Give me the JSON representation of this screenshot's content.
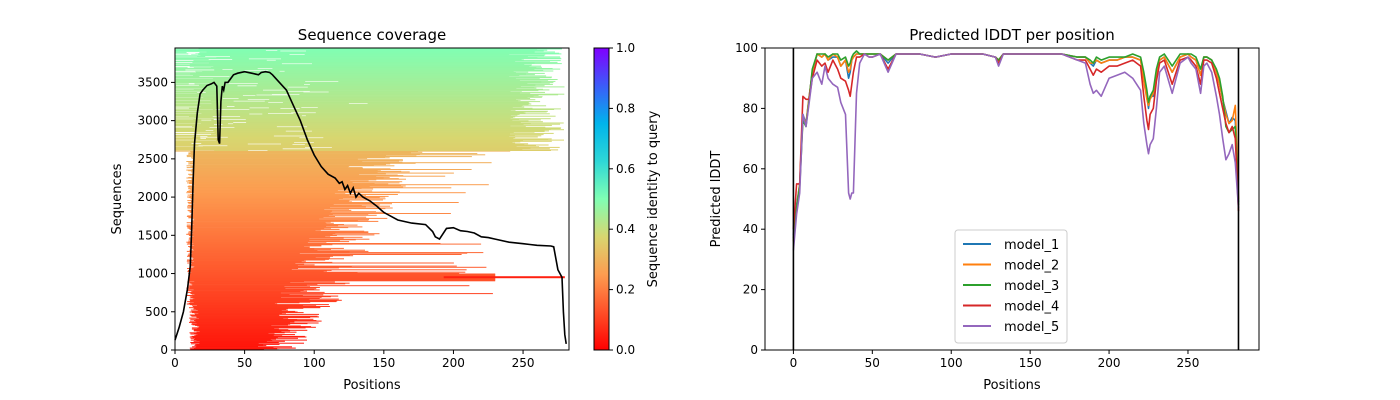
{
  "figure": {
    "background": "#ffffff"
  },
  "chart_data": [
    {
      "type": "heatmap",
      "title": "Sequence coverage",
      "xlabel": "Positions",
      "ylabel": "Sequences",
      "xlim": [
        0,
        283
      ],
      "ylim": [
        0,
        3950
      ],
      "xticks": [
        0,
        50,
        100,
        150,
        200,
        250
      ],
      "yticks": [
        0,
        500,
        1000,
        1500,
        2000,
        2500,
        3000,
        3500
      ],
      "colorbar": {
        "label": "Sequence identity to query",
        "range": [
          0.0,
          1.0
        ],
        "ticks": [
          "0.0",
          "0.2",
          "0.4",
          "0.6",
          "0.8",
          "1.0"
        ],
        "colormap": "rainbow_r"
      },
      "coverage_line": {
        "color": "#000000",
        "x": [
          0,
          3,
          6,
          9,
          11,
          12,
          13,
          14,
          16,
          18,
          20,
          23,
          26,
          28,
          30,
          31,
          32,
          33,
          34,
          35,
          36,
          38,
          40,
          42,
          45,
          50,
          55,
          60,
          62,
          65,
          68,
          70,
          72,
          75,
          80,
          85,
          90,
          95,
          100,
          105,
          110,
          115,
          118,
          120,
          122,
          124,
          126,
          128,
          130,
          132,
          135,
          140,
          145,
          150,
          160,
          170,
          180,
          185,
          187,
          190,
          195,
          200,
          205,
          210,
          215,
          220,
          225,
          230,
          240,
          250,
          255,
          260,
          270,
          272,
          275,
          278,
          279,
          280,
          281
        ],
        "y": [
          130,
          300,
          500,
          800,
          1100,
          1600,
          2200,
          2700,
          3100,
          3350,
          3400,
          3460,
          3480,
          3500,
          3450,
          2750,
          2700,
          3250,
          3450,
          3400,
          3500,
          3500,
          3550,
          3600,
          3620,
          3640,
          3620,
          3600,
          3630,
          3640,
          3630,
          3600,
          3560,
          3500,
          3400,
          3200,
          3000,
          2750,
          2550,
          2400,
          2300,
          2250,
          2180,
          2200,
          2100,
          2150,
          2050,
          2120,
          2000,
          2050,
          2000,
          1950,
          1880,
          1800,
          1700,
          1660,
          1640,
          1550,
          1480,
          1450,
          1590,
          1600,
          1560,
          1550,
          1530,
          1480,
          1470,
          1450,
          1410,
          1390,
          1380,
          1370,
          1360,
          1350,
          1050,
          950,
          500,
          200,
          80
        ]
      }
    },
    {
      "type": "line",
      "title": "Predicted lDDT per position",
      "xlabel": "Positions",
      "ylabel": "Predicted lDDT",
      "xlim": [
        -18,
        295
      ],
      "ylim": [
        0,
        100
      ],
      "xticks": [
        0,
        50,
        100,
        150,
        200,
        250
      ],
      "yticks": [
        0,
        20,
        40,
        60,
        80,
        100
      ],
      "vlines": [
        0,
        282
      ],
      "legend_position": "lower center",
      "x": [
        0,
        2,
        4,
        6,
        8,
        10,
        12,
        15,
        18,
        20,
        22,
        25,
        28,
        30,
        33,
        35,
        36,
        37,
        38,
        40,
        42,
        45,
        48,
        50,
        55,
        60,
        65,
        70,
        75,
        80,
        90,
        100,
        110,
        120,
        128,
        130,
        133,
        140,
        150,
        160,
        170,
        180,
        185,
        188,
        190,
        192,
        195,
        200,
        205,
        210,
        215,
        220,
        222,
        224,
        225,
        226,
        228,
        230,
        232,
        235,
        240,
        245,
        250,
        252,
        255,
        258,
        260,
        262,
        265,
        268,
        270,
        272,
        274,
        276,
        278,
        280,
        282
      ],
      "series": [
        {
          "name": "model_1",
          "color": "#1f77b4",
          "values": [
            38,
            48,
            55,
            78,
            75,
            84,
            92,
            98,
            97,
            98,
            96,
            97,
            97,
            94,
            96,
            90,
            92,
            96,
            97,
            98,
            98,
            98,
            98,
            98,
            98,
            95,
            98,
            98,
            98,
            98,
            97,
            98,
            98,
            98,
            97,
            96,
            98,
            98,
            98,
            98,
            98,
            97,
            97,
            95,
            94,
            96,
            95,
            96,
            96,
            97,
            97,
            96,
            90,
            84,
            80,
            84,
            84,
            92,
            96,
            97,
            92,
            97,
            98,
            97,
            96,
            91,
            97,
            97,
            96,
            92,
            88,
            83,
            79,
            75,
            77,
            76,
            49
          ]
        },
        {
          "name": "model_2",
          "color": "#ff7f0e",
          "values": [
            36,
            47,
            55,
            77,
            75,
            84,
            92,
            98,
            97,
            98,
            96,
            98,
            97,
            94,
            96,
            92,
            93,
            96,
            97,
            98,
            98,
            98,
            98,
            98,
            98,
            96,
            98,
            98,
            98,
            98,
            97,
            98,
            98,
            98,
            97,
            96,
            98,
            98,
            98,
            98,
            98,
            97,
            97,
            95,
            95,
            96,
            95,
            96,
            96,
            97,
            97,
            96,
            89,
            83,
            81,
            83,
            85,
            91,
            96,
            97,
            92,
            97,
            98,
            97,
            96,
            91,
            97,
            97,
            96,
            92,
            88,
            83,
            78,
            75,
            76,
            81,
            50
          ]
        },
        {
          "name": "model_3",
          "color": "#2ca02c",
          "values": [
            37,
            47,
            54,
            76,
            74,
            83,
            93,
            98,
            98,
            98,
            97,
            98,
            98,
            96,
            97,
            94,
            95,
            97,
            98,
            99,
            98,
            98,
            98,
            98,
            98,
            96,
            98,
            98,
            98,
            98,
            97,
            98,
            98,
            98,
            97,
            96,
            98,
            98,
            98,
            98,
            98,
            97,
            97,
            96,
            95,
            97,
            96,
            97,
            97,
            97,
            98,
            97,
            92,
            86,
            82,
            84,
            86,
            93,
            97,
            98,
            94,
            98,
            98,
            98,
            97,
            93,
            97,
            97,
            96,
            93,
            90,
            84,
            74,
            72,
            73,
            74,
            48
          ]
        },
        {
          "name": "model_4",
          "color": "#d62728",
          "values": [
            40,
            55,
            55,
            84,
            83,
            83,
            90,
            96,
            94,
            95,
            92,
            96,
            93,
            90,
            89,
            86,
            84,
            88,
            92,
            97,
            97,
            98,
            97,
            97,
            98,
            93,
            98,
            98,
            98,
            98,
            97,
            98,
            98,
            98,
            97,
            95,
            98,
            98,
            98,
            98,
            98,
            96,
            96,
            93,
            91,
            93,
            92,
            94,
            94,
            95,
            96,
            94,
            84,
            76,
            73,
            78,
            80,
            89,
            95,
            96,
            88,
            96,
            97,
            96,
            94,
            88,
            96,
            96,
            95,
            90,
            85,
            80,
            75,
            72,
            74,
            70,
            46
          ]
        },
        {
          "name": "model_5",
          "color": "#9467bd",
          "values": [
            33,
            45,
            52,
            78,
            74,
            82,
            90,
            92,
            88,
            94,
            90,
            88,
            87,
            82,
            78,
            52,
            50,
            52,
            52,
            85,
            95,
            98,
            97,
            97,
            98,
            92,
            98,
            98,
            98,
            98,
            97,
            98,
            98,
            98,
            97,
            94,
            98,
            98,
            98,
            98,
            98,
            96,
            95,
            88,
            85,
            86,
            84,
            90,
            91,
            92,
            90,
            86,
            75,
            68,
            65,
            68,
            70,
            80,
            92,
            94,
            85,
            95,
            97,
            95,
            93,
            85,
            94,
            95,
            92,
            84,
            78,
            70,
            63,
            65,
            68,
            62,
            47
          ]
        }
      ]
    }
  ]
}
